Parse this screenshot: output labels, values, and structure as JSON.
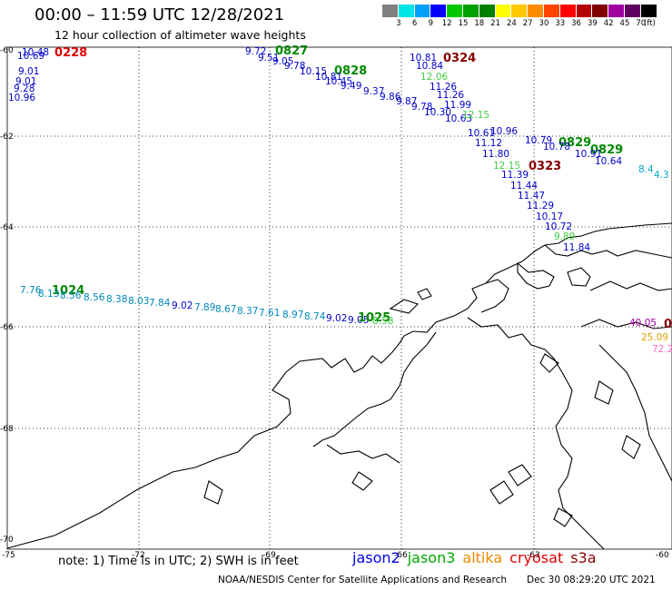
{
  "title": "00:00 – 11:59 UTC 12/28/2021",
  "subtitle": "12 hour collection of altimeter wave heights",
  "legend": {
    "colors": [
      "#808080",
      "#00e5e5",
      "#00a0ff",
      "#0000ff",
      "#00c800",
      "#00a000",
      "#008000",
      "#ffff00",
      "#ffc800",
      "#ff8c00",
      "#ff4500",
      "#ff0000",
      "#b40000",
      "#800000",
      "#a000a0",
      "#600060",
      "#000000"
    ],
    "labels": [
      "3",
      "6",
      "9",
      "12",
      "15",
      "18",
      "21",
      "24",
      "27",
      "30",
      "33",
      "36",
      "39",
      "42",
      "45",
      "70"
    ],
    "unit": "(ft)"
  },
  "axes": {
    "lat_labels": [
      "-60",
      "-62",
      "-64",
      "-66",
      "-68",
      "-70"
    ],
    "lon_labels": [
      "-75",
      "-72",
      "-69",
      "-66",
      "-63",
      "-60"
    ]
  },
  "tracks": [
    {
      "time": "0228",
      "time_color": "#dd0000",
      "points": [
        {
          "v": "10.48",
          "c": "#0000cc"
        },
        {
          "v": "10.69",
          "c": "#0000cc"
        },
        {
          "v": "9.01",
          "c": "#0000cc"
        },
        {
          "v": "9.01",
          "c": "#0000cc"
        },
        {
          "v": "9.28",
          "c": "#0000cc"
        },
        {
          "v": "10.96",
          "c": "#0000cc"
        }
      ]
    },
    {
      "time": "0827",
      "time_color": "#008800",
      "points": [
        {
          "v": "9.72",
          "c": "#0000cc"
        },
        {
          "v": "9.51",
          "c": "#0000cc"
        },
        {
          "v": "9.05",
          "c": "#0000cc"
        },
        {
          "v": "9.78",
          "c": "#0000cc"
        },
        {
          "v": "10.15",
          "c": "#0000cc"
        }
      ]
    },
    {
      "time": "0828",
      "time_color": "#008800",
      "points": [
        {
          "v": "10.81",
          "c": "#0000cc"
        },
        {
          "v": "10.45",
          "c": "#0000cc"
        },
        {
          "v": "9.49",
          "c": "#0000cc"
        },
        {
          "v": "9.37",
          "c": "#0000cc"
        },
        {
          "v": "9.86",
          "c": "#0000cc"
        },
        {
          "v": "9.87",
          "c": "#0000cc"
        },
        {
          "v": "9.78",
          "c": "#0000cc"
        },
        {
          "v": "10.30",
          "c": "#0000cc"
        },
        {
          "v": "10.63",
          "c": "#0000cc"
        },
        {
          "v": "10.61",
          "c": "#0000cc"
        }
      ]
    },
    {
      "time": "0324",
      "time_color": "#880000",
      "points": [
        {
          "v": "10.81",
          "c": "#0000cc"
        },
        {
          "v": "10.84",
          "c": "#0000cc"
        },
        {
          "v": "12.06",
          "c": "#44cc44"
        },
        {
          "v": "11.26",
          "c": "#0000cc"
        },
        {
          "v": "11.26",
          "c": "#0000cc"
        },
        {
          "v": "11.99",
          "c": "#0000cc"
        },
        {
          "v": "12.15",
          "c": "#44cc44"
        },
        {
          "v": "11.12",
          "c": "#0000cc"
        },
        {
          "v": "11.80",
          "c": "#0000cc"
        },
        {
          "v": "12.15",
          "c": "#44cc44"
        },
        {
          "v": "11.39",
          "c": "#0000cc"
        },
        {
          "v": "11.44",
          "c": "#0000cc"
        },
        {
          "v": "11.47",
          "c": "#0000cc"
        },
        {
          "v": "11.29",
          "c": "#0000cc"
        },
        {
          "v": "10.17",
          "c": "#0000cc"
        },
        {
          "v": "10.72",
          "c": "#0000cc"
        },
        {
          "v": "9.89",
          "c": "#44cc44"
        },
        {
          "v": "11.84",
          "c": "#0000cc"
        }
      ]
    },
    {
      "time": "0829",
      "time_color": "#008800",
      "points": [
        {
          "v": "10.96",
          "c": "#0000cc"
        },
        {
          "v": "10.79",
          "c": "#0000cc"
        },
        {
          "v": "10.78",
          "c": "#0000cc"
        },
        {
          "v": "10.91",
          "c": "#0000cc"
        },
        {
          "v": "10.64",
          "c": "#0000cc"
        },
        {
          "v": "8.4",
          "c": "#00aacc"
        },
        {
          "v": "4.3",
          "c": "#00aacc"
        }
      ]
    },
    {
      "time": "0323",
      "time_color": "#880000",
      "points": []
    },
    {
      "time": "1024",
      "time_color": "#008800",
      "points": [
        {
          "v": "7.76",
          "c": "#0088bb"
        },
        {
          "v": "8.13",
          "c": "#0088bb"
        },
        {
          "v": "8.56",
          "c": "#0088bb"
        },
        {
          "v": "8.56",
          "c": "#0088bb"
        },
        {
          "v": "8.38",
          "c": "#0088bb"
        },
        {
          "v": "8.03",
          "c": "#0088bb"
        },
        {
          "v": "7.84",
          "c": "#0088bb"
        },
        {
          "v": "9.02",
          "c": "#0000cc"
        },
        {
          "v": "7.89",
          "c": "#0088bb"
        },
        {
          "v": "8.67",
          "c": "#0088bb"
        },
        {
          "v": "8.37",
          "c": "#0088bb"
        },
        {
          "v": "7.61",
          "c": "#0088bb"
        },
        {
          "v": "8.97",
          "c": "#0088bb"
        },
        {
          "v": "8.74",
          "c": "#0088bb"
        },
        {
          "v": "9.02",
          "c": "#0000cc"
        },
        {
          "v": "9.05",
          "c": "#0000cc"
        }
      ]
    },
    {
      "time": "1025",
      "time_color": "#008800",
      "points": [
        {
          "v": "8.58",
          "c": "#44cc44"
        }
      ]
    },
    {
      "time": "0",
      "time_color": "#880000",
      "points": [
        {
          "v": "40.05",
          "c": "#a000a0"
        },
        {
          "v": "25.09",
          "c": "#e0a000"
        },
        {
          "v": "72.2",
          "c": "#ff66cc"
        }
      ]
    }
  ],
  "note": "note: 1) Time is in UTC; 2) SWH is in feet",
  "missions": [
    {
      "name": "jason2",
      "color": "#0000ee"
    },
    {
      "name": "jason3",
      "color": "#00aa00"
    },
    {
      "name": "altika",
      "color": "#ee8800"
    },
    {
      "name": "cryosat",
      "color": "#dd0000"
    },
    {
      "name": "s3a",
      "color": "#880000"
    }
  ],
  "credit": "NOAA/NESDIS Center for Satellite Applications and Research",
  "timestamp": "Dec 30 08:29:20 UTC 2021"
}
